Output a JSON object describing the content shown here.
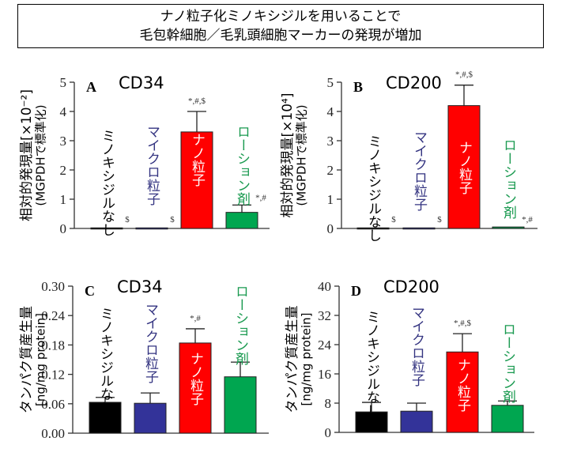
{
  "title": {
    "line1": "ナノ粒子化ミノキシジルを用いることで",
    "line2": "毛包幹細胞／毛乳頭細胞マーカーの発現が増加"
  },
  "colors": {
    "none": "#000000",
    "micro": "#333399",
    "nano": "#ff0000",
    "lotion": "#00a650",
    "micro_label": "#333380",
    "lotion_label": "#1a9a50"
  },
  "chart_data": [
    {
      "type": "bar",
      "panel": "A",
      "title": "CD34",
      "ylabel": [
        "相対的発現量[×10⁻²]",
        "(MGPDHで標準化)"
      ],
      "ylim": [
        0,
        5
      ],
      "yticks": [
        "0",
        "1",
        "2",
        "3",
        "4",
        "5"
      ],
      "categories": [
        "ミノキシジルなし",
        "マイクロ粒子",
        "ナノ粒子",
        "ローション剤"
      ],
      "values": [
        0.02,
        0.02,
        3.3,
        0.55
      ],
      "errors_upper": [
        0.02,
        0.02,
        4.0,
        0.8
      ],
      "significance": [
        "$",
        "$",
        "*,#,$",
        "*,#"
      ]
    },
    {
      "type": "bar",
      "panel": "B",
      "title": "CD200",
      "ylabel": [
        "相対的発現量[×10⁴]",
        "(MGPDHで標準化)"
      ],
      "ylim": [
        0,
        5
      ],
      "yticks": [
        "0",
        "1",
        "2",
        "3",
        "4",
        "5"
      ],
      "categories": [
        "ミノキシジルなし",
        "マイクロ粒子",
        "ナノ粒子",
        "ローション剤"
      ],
      "values": [
        0.02,
        0.02,
        4.2,
        0.05
      ],
      "errors_upper": [
        0.02,
        0.02,
        4.9,
        0.05
      ],
      "significance": [
        "$",
        "$",
        "*,#,$",
        "*,#"
      ]
    },
    {
      "type": "bar",
      "panel": "C",
      "title": "CD34",
      "ylabel": [
        "タンパク質産生量",
        "[ng/mg protein]"
      ],
      "ylim": [
        0,
        0.3
      ],
      "yticks": [
        "0.00",
        "0.06",
        "0.12",
        "0.18",
        "0.24",
        "0.30"
      ],
      "categories": [
        "ミノキシジルなし",
        "マイクロ粒子",
        "ナノ粒子",
        "ローション剤"
      ],
      "values": [
        0.063,
        0.061,
        0.184,
        0.115
      ],
      "errors_upper": [
        0.073,
        0.082,
        0.213,
        0.145
      ],
      "significance": [
        "",
        "",
        "*,#",
        ""
      ]
    },
    {
      "type": "bar",
      "panel": "D",
      "title": "CD200",
      "ylabel": [
        "タンパク質産生量",
        "[ng/mg protein]"
      ],
      "ylim": [
        0,
        40
      ],
      "yticks": [
        "0",
        "8",
        "16",
        "24",
        "32",
        "40"
      ],
      "categories": [
        "ミノキシジルなし",
        "マイクロ粒子",
        "ナノ粒子",
        "ローション剤"
      ],
      "values": [
        5.6,
        5.8,
        22,
        7.4
      ],
      "errors_upper": [
        8.2,
        8.0,
        27,
        8.6
      ],
      "significance": [
        "",
        "",
        "*,#,$",
        ""
      ]
    }
  ]
}
